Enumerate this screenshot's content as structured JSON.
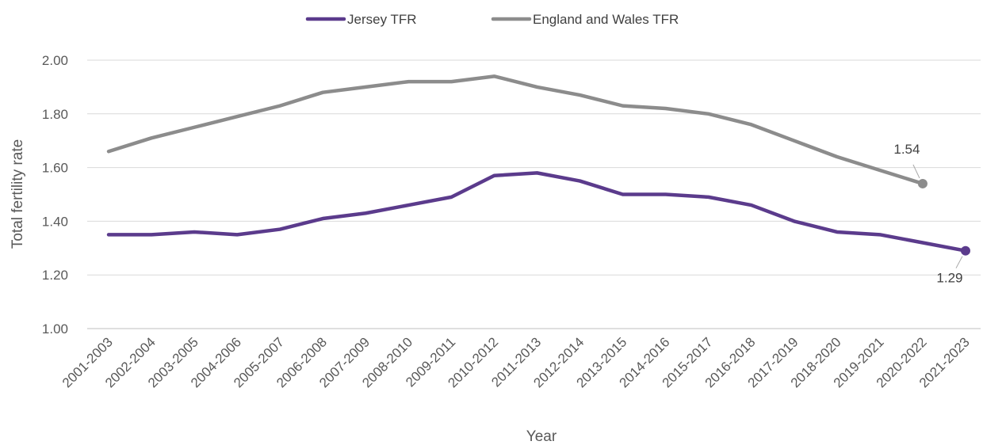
{
  "chart_data": {
    "type": "line",
    "xlabel": "Year",
    "ylabel": "Total fertility rate",
    "ylim": [
      1.0,
      2.0
    ],
    "ytick_step": 0.2,
    "y_tick_labels": [
      "1.00",
      "1.20",
      "1.40",
      "1.60",
      "1.80",
      "2.00"
    ],
    "grid": true,
    "legend_position": "top-center",
    "categories": [
      "2001-2003",
      "2002-2004",
      "2003-2005",
      "2004-2006",
      "2005-2007",
      "2006-2008",
      "2007-2009",
      "2008-2010",
      "2009-2011",
      "2010-2012",
      "2011-2013",
      "2012-2014",
      "2013-2015",
      "2014-2016",
      "2015-2017",
      "2016-2018",
      "2017-2019",
      "2018-2020",
      "2019-2021",
      "2020-2022",
      "2021-2023"
    ],
    "series": [
      {
        "name": "Jersey TFR",
        "color": "#5b3b8c",
        "values": [
          1.35,
          1.35,
          1.36,
          1.35,
          1.37,
          1.41,
          1.43,
          1.46,
          1.49,
          1.57,
          1.58,
          1.55,
          1.5,
          1.5,
          1.49,
          1.46,
          1.4,
          1.36,
          1.35,
          1.32,
          1.29
        ],
        "end_label": "1.29"
      },
      {
        "name": "England and Wales TFR",
        "color": "#8c8c8c",
        "values": [
          1.66,
          1.71,
          1.75,
          1.79,
          1.83,
          1.88,
          1.9,
          1.92,
          1.92,
          1.94,
          1.9,
          1.87,
          1.83,
          1.82,
          1.8,
          1.76,
          1.7,
          1.64,
          1.59,
          1.54,
          null
        ],
        "end_label": "1.54"
      }
    ]
  }
}
